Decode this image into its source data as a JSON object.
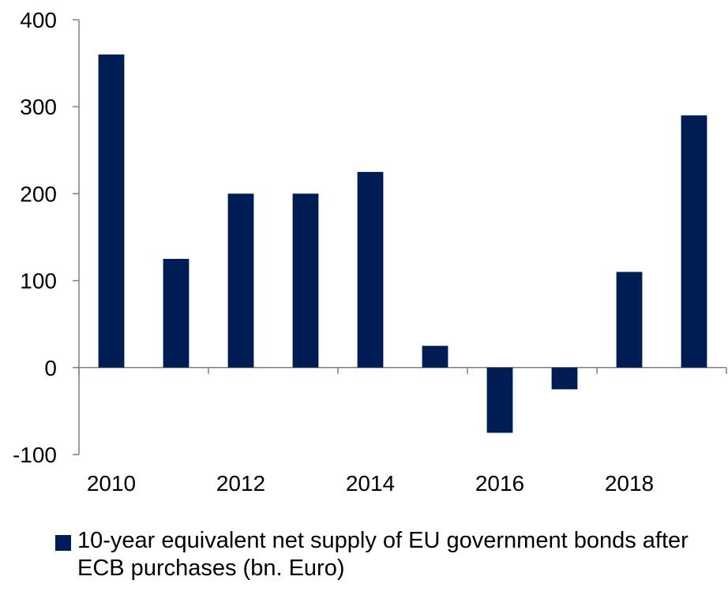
{
  "chart_data": {
    "type": "bar",
    "title": "",
    "xlabel": "",
    "ylabel": "",
    "categories": [
      "2010",
      "2011",
      "2012",
      "2013",
      "2014",
      "2015",
      "2016",
      "2017",
      "2018",
      "2019"
    ],
    "x_tick_labels": [
      "2010",
      "2012",
      "2014",
      "2016",
      "2018"
    ],
    "y_ticks": [
      -100,
      0,
      100,
      200,
      300,
      400
    ],
    "ylim": [
      -100,
      400
    ],
    "series": [
      {
        "name": "10-year equivalent net supply of EU government bonds after ECB purchases (bn. Euro)",
        "values": [
          360,
          125,
          200,
          200,
          225,
          25,
          -75,
          -25,
          110,
          290
        ],
        "color": "#001c54"
      }
    ],
    "grid": false,
    "legend_position": "bottom-left"
  }
}
